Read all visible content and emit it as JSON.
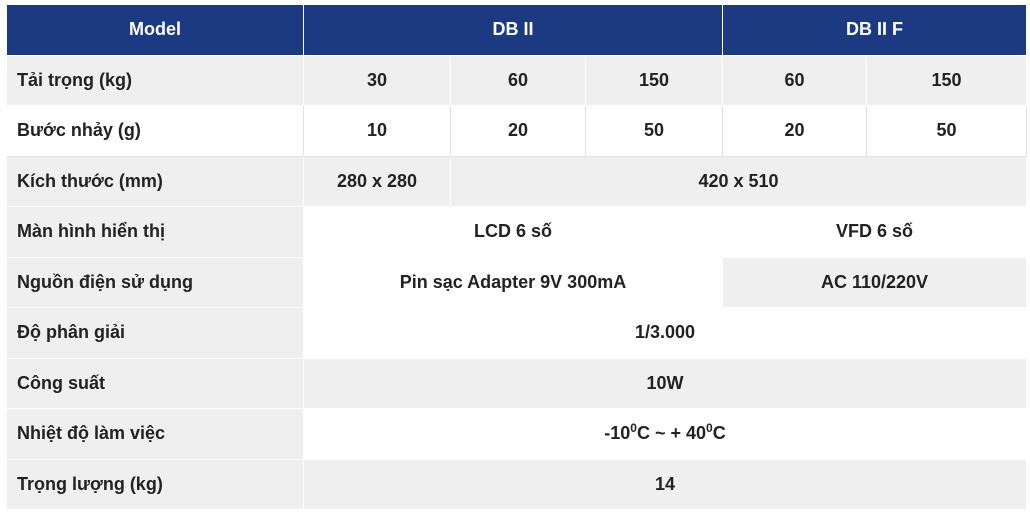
{
  "header": {
    "model": "Model",
    "db2": "DB II",
    "db2f": "DB II F"
  },
  "rows": {
    "load": {
      "label": "Tải trọng (kg)",
      "v1": "30",
      "v2": "60",
      "v3": "150",
      "v4": "60",
      "v5": "150"
    },
    "step": {
      "label": "Bước nhảy (g)",
      "v1": "10",
      "v2": "20",
      "v3": "50",
      "v4": "20",
      "v5": "50"
    },
    "size": {
      "label": "Kích thước (mm)",
      "small": "280 x 280",
      "large": "420 x 510"
    },
    "display": {
      "label": "Màn hình hiển thị",
      "lcd": "LCD 6  số",
      "vfd": "VFD 6 số",
      "lcd_color": "#1f8a7c",
      "vfd_color": "#e8761e"
    },
    "power": {
      "label": "Nguồn điện sử dụng",
      "db2": "Pin sạc Adapter 9V 300mA",
      "db2f": "AC 110/220V"
    },
    "resolution": {
      "label": "Độ phân giải",
      "value": "1/3.000"
    },
    "wattage": {
      "label": "Công suất",
      "value": "10W"
    },
    "temperature": {
      "label": "Nhiệt độ làm việc",
      "min": "-10",
      "sep": " ~ + 40",
      "sup": "0",
      "unit": "C"
    },
    "weight": {
      "label": "Trọng lượng (kg)",
      "value": "14"
    }
  },
  "colors": {
    "header_bg": "#1b3a82",
    "row_gray": "#efefef"
  }
}
